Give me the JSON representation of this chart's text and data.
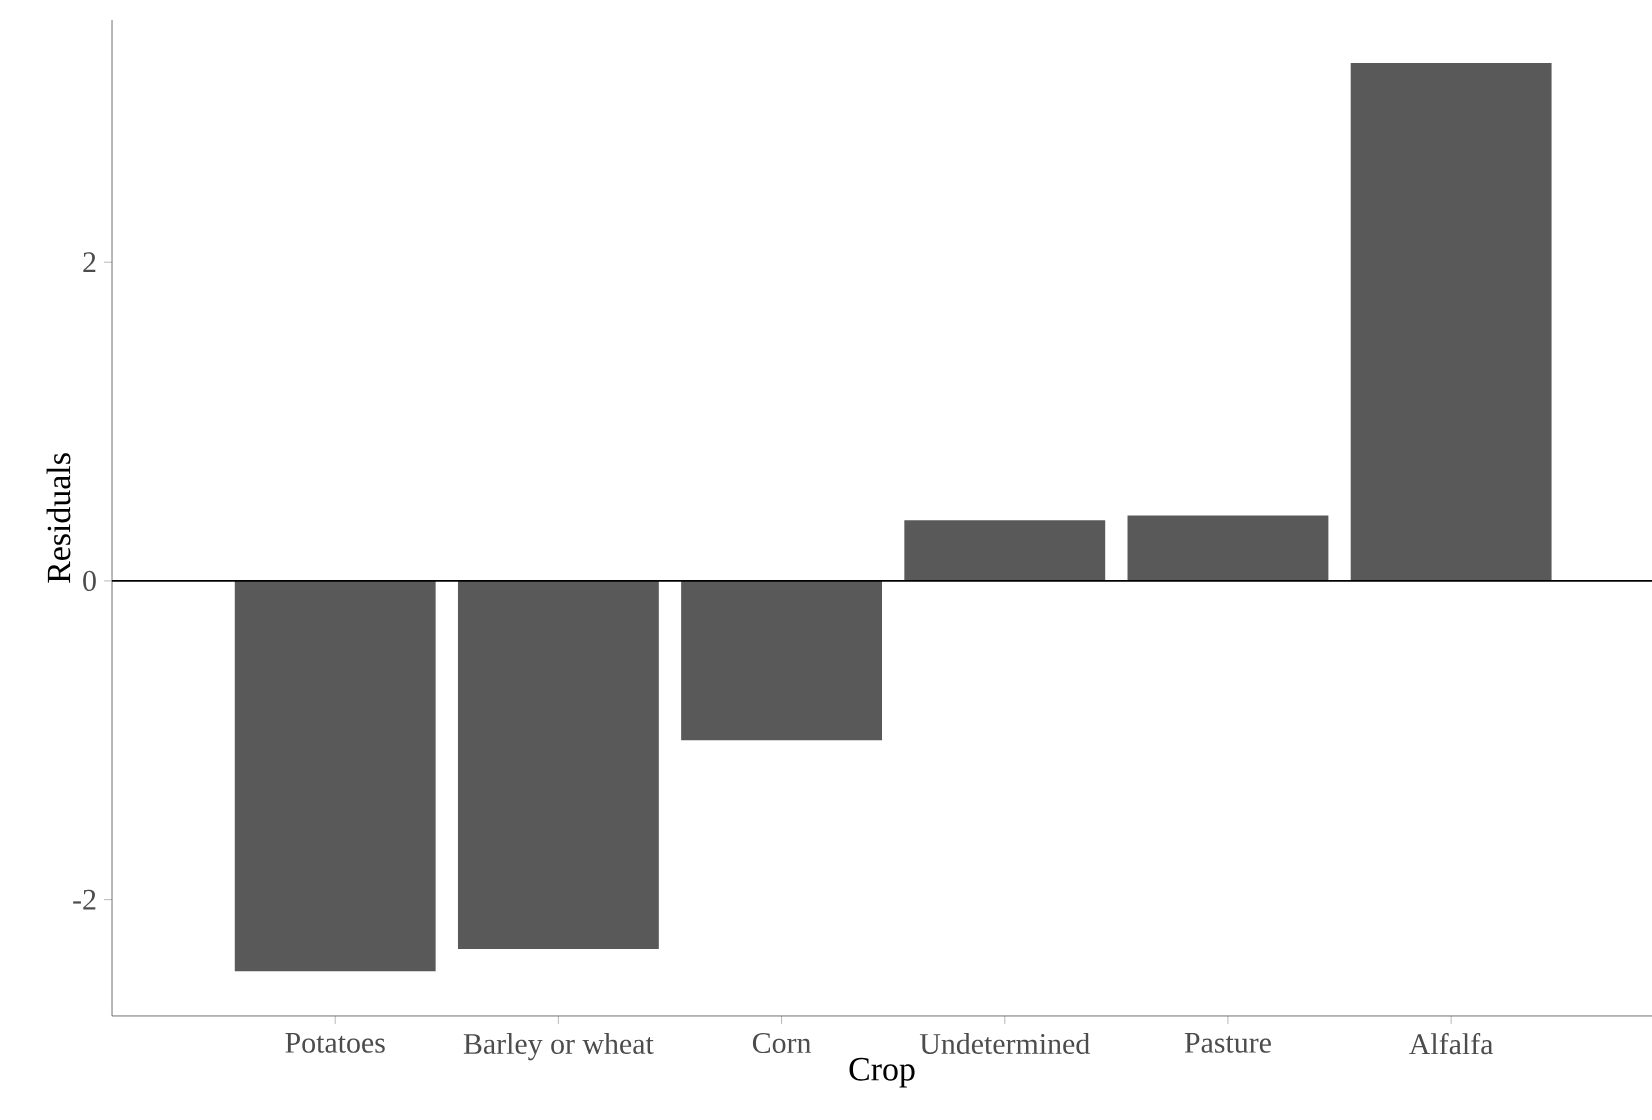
{
  "chart_data": {
    "type": "bar",
    "xlabel": "Crop",
    "ylabel": "Residuals",
    "categories": [
      "Potatoes",
      "Barley or wheat",
      "Corn",
      "Undetermined",
      "Pasture",
      "Alfalfa"
    ],
    "values": [
      -2.45,
      -2.31,
      -1.0,
      0.38,
      0.41,
      3.25
    ],
    "color": "#595959",
    "ylim": [
      -2.73,
      3.52
    ],
    "yticks": [
      -2,
      0,
      2
    ],
    "grid": false,
    "ref_lines": [
      {
        "axis": "y",
        "value": 0,
        "color": "#000000"
      }
    ]
  }
}
